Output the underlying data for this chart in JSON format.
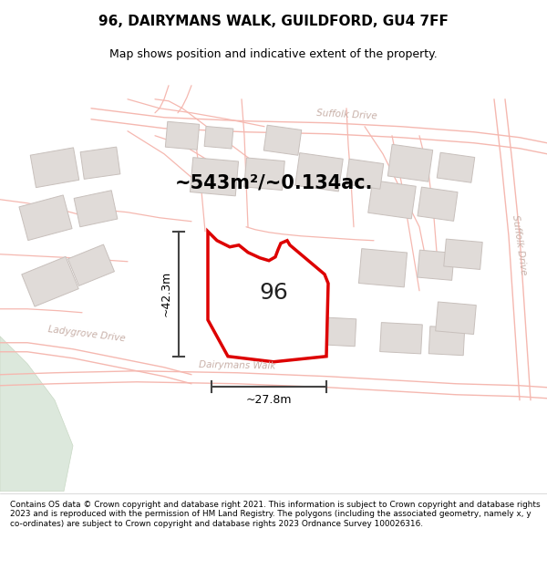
{
  "title_line1": "96, DAIRYMANS WALK, GUILDFORD, GU4 7FF",
  "title_line2": "Map shows position and indicative extent of the property.",
  "area_text": "~543m²/~0.134ac.",
  "dim_width": "~27.8m",
  "dim_height": "~42.3m",
  "property_number": "96",
  "footer_text": "Contains OS data © Crown copyright and database right 2021. This information is subject to Crown copyright and database rights 2023 and is reproduced with the permission of HM Land Registry. The polygons (including the associated geometry, namely x, y co-ordinates) are subject to Crown copyright and database rights 2023 Ordnance Survey 100026316.",
  "map_bg": "#ffffff",
  "plot_fill": "#ffffff",
  "plot_stroke": "#dd0000",
  "road_color": "#f5b8b0",
  "road_lw": 1.2,
  "building_fill": "#e0dbd8",
  "building_stroke": "#c8c0bc",
  "parcel_stroke": "#e0d8d4",
  "green_fill": "#dce8dc",
  "green_stroke": "#c8d8c4",
  "road_text_color": "#c8b0a8",
  "dim_color": "#444444",
  "title_fontsize": 11,
  "subtitle_fontsize": 9,
  "footer_fontsize": 6.4,
  "area_fontsize": 15,
  "propnum_fontsize": 18,
  "dim_fontsize": 9
}
